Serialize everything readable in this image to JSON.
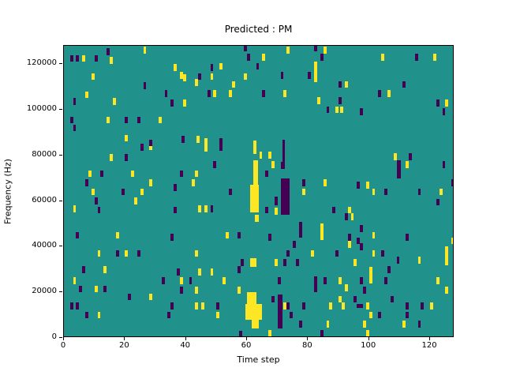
{
  "title": "Predicted : PM",
  "axes": {
    "xlabel": "Time step",
    "ylabel": "Frequency (Hz)",
    "xticks": [
      0,
      20,
      40,
      60,
      80,
      100,
      120
    ],
    "yticks": [
      0,
      20000,
      40000,
      60000,
      80000,
      100000,
      120000
    ]
  },
  "colors": {
    "figure_bg": "#ffffff",
    "mid": "#21918c",
    "high": "#fde725",
    "low": "#440154",
    "axis": "#000000"
  },
  "chart_data": {
    "type": "heatmap",
    "title": "Predicted : PM",
    "xlabel": "Time step",
    "ylabel": "Frequency (Hz)",
    "x_range": [
      0,
      128
    ],
    "y_range_hz": [
      0,
      128000
    ],
    "grid": false,
    "legend": "none",
    "background_value_color": "#21918c",
    "note": "sparse prediction mask: yellow=high class cells, dark=low class cells, units t=time step, f=kHz",
    "single_width_steps": 1,
    "single_height_khz": 3,
    "marks": {
      "yellow_singles": [
        [
          26,
          126
        ],
        [
          6,
          122.5
        ],
        [
          15,
          121.5
        ],
        [
          9,
          114.5
        ],
        [
          7,
          106.5
        ],
        [
          16,
          103.5
        ],
        [
          14,
          95.5
        ],
        [
          31,
          95.5
        ],
        [
          20,
          87.5
        ],
        [
          36,
          118.5
        ],
        [
          51,
          119
        ],
        [
          38,
          115
        ],
        [
          39,
          114
        ],
        [
          43,
          112
        ],
        [
          48,
          114.5
        ],
        [
          59,
          114.5
        ],
        [
          55,
          111
        ],
        [
          49,
          107
        ],
        [
          54,
          107
        ],
        [
          39,
          103
        ],
        [
          43.5,
          87
        ],
        [
          46,
          86
        ],
        [
          62,
          85
        ],
        [
          73,
          126
        ],
        [
          85,
          126
        ],
        [
          65,
          123
        ],
        [
          72,
          107
        ],
        [
          83,
          104
        ],
        [
          89,
          100
        ],
        [
          90.5,
          100
        ],
        [
          92,
          111
        ],
        [
          104,
          123
        ],
        [
          121,
          123
        ],
        [
          106,
          107
        ],
        [
          125,
          103
        ],
        [
          28,
          84
        ],
        [
          15,
          79
        ],
        [
          8,
          72
        ],
        [
          22,
          72
        ],
        [
          28,
          68
        ],
        [
          9,
          64
        ],
        [
          25,
          64
        ],
        [
          23,
          60
        ],
        [
          3,
          56.5
        ],
        [
          17,
          45
        ],
        [
          46,
          83
        ],
        [
          62,
          82
        ],
        [
          43,
          72
        ],
        [
          42,
          68
        ],
        [
          44,
          56.5
        ],
        [
          46,
          56.5
        ],
        [
          53,
          45
        ],
        [
          64,
          80
        ],
        [
          67,
          80
        ],
        [
          68,
          76
        ],
        [
          85,
          68
        ],
        [
          78,
          64
        ],
        [
          69,
          55.5
        ],
        [
          93,
          56
        ],
        [
          94,
          53
        ],
        [
          108,
          79.5
        ],
        [
          112,
          76
        ],
        [
          99,
          67
        ],
        [
          101,
          64
        ],
        [
          123,
          64
        ],
        [
          101,
          45
        ],
        [
          127,
          42.5
        ],
        [
          11,
          37
        ],
        [
          20,
          37
        ],
        [
          13,
          30
        ],
        [
          3,
          25
        ],
        [
          10,
          21.5
        ],
        [
          28,
          18
        ],
        [
          11,
          10
        ],
        [
          43,
          37
        ],
        [
          44,
          29
        ],
        [
          48,
          29
        ],
        [
          38,
          25
        ],
        [
          52,
          25
        ],
        [
          43,
          21
        ],
        [
          57,
          21
        ],
        [
          43,
          14
        ],
        [
          45,
          14
        ],
        [
          50,
          10
        ],
        [
          93,
          41
        ],
        [
          81,
          37
        ],
        [
          69,
          33
        ],
        [
          95,
          33
        ],
        [
          90,
          25
        ],
        [
          92,
          22
        ],
        [
          90,
          17
        ],
        [
          72,
          14
        ],
        [
          87,
          14
        ],
        [
          91,
          14
        ],
        [
          86,
          6
        ],
        [
          67,
          2
        ],
        [
          101,
          37
        ],
        [
          116,
          34
        ],
        [
          122,
          25
        ],
        [
          125,
          21
        ],
        [
          99,
          14
        ],
        [
          120,
          14
        ],
        [
          100,
          10
        ],
        [
          111,
          6
        ],
        [
          98,
          6
        ],
        [
          99,
          2
        ]
      ],
      "dark_singles": [
        [
          14,
          125.5
        ],
        [
          2,
          122.5
        ],
        [
          4,
          122.5
        ],
        [
          10,
          122.5
        ],
        [
          26,
          110.5
        ],
        [
          3,
          103.5
        ],
        [
          2,
          95.5
        ],
        [
          20,
          95.5
        ],
        [
          24,
          95.5
        ],
        [
          3,
          92
        ],
        [
          28,
          85.5
        ],
        [
          59,
          127
        ],
        [
          60,
          123
        ],
        [
          48,
          118.5
        ],
        [
          63,
          119
        ],
        [
          44,
          114.5
        ],
        [
          47,
          107
        ],
        [
          33,
          107
        ],
        [
          35,
          103
        ],
        [
          38.5,
          87
        ],
        [
          51,
          86
        ],
        [
          82,
          127
        ],
        [
          84,
          123
        ],
        [
          80,
          115
        ],
        [
          71,
          115
        ],
        [
          90,
          111
        ],
        [
          65,
          107
        ],
        [
          90,
          104
        ],
        [
          86,
          100
        ],
        [
          115,
          123
        ],
        [
          111,
          111
        ],
        [
          103,
          107
        ],
        [
          122,
          103
        ],
        [
          124,
          99
        ],
        [
          97,
          99
        ],
        [
          25,
          83.5
        ],
        [
          20,
          79
        ],
        [
          12,
          72
        ],
        [
          7,
          68
        ],
        [
          19,
          64
        ],
        [
          10,
          60
        ],
        [
          11,
          56
        ],
        [
          4,
          45
        ],
        [
          51,
          83.5
        ],
        [
          49,
          76
        ],
        [
          38,
          72
        ],
        [
          36,
          66
        ],
        [
          54,
          64
        ],
        [
          48,
          56.5
        ],
        [
          36,
          56
        ],
        [
          57,
          45
        ],
        [
          35,
          44
        ],
        [
          66,
          72
        ],
        [
          78,
          68
        ],
        [
          66,
          56
        ],
        [
          88,
          56
        ],
        [
          92,
          53
        ],
        [
          67,
          44
        ],
        [
          93,
          44
        ],
        [
          113,
          79.5
        ],
        [
          124,
          76
        ],
        [
          96,
          67
        ],
        [
          127,
          68
        ],
        [
          105,
          64
        ],
        [
          116,
          64
        ],
        [
          122,
          59.5
        ],
        [
          97,
          48
        ],
        [
          112,
          44
        ],
        [
          96,
          42.5
        ],
        [
          17,
          37
        ],
        [
          24,
          37
        ],
        [
          6,
          30
        ],
        [
          5,
          21.5
        ],
        [
          13,
          21.5
        ],
        [
          21,
          18
        ],
        [
          2,
          14
        ],
        [
          4,
          14
        ],
        [
          7,
          10
        ],
        [
          58,
          33
        ],
        [
          37,
          29
        ],
        [
          57,
          30
        ],
        [
          32,
          25
        ],
        [
          41,
          25
        ],
        [
          38,
          21
        ],
        [
          35,
          14
        ],
        [
          50,
          14
        ],
        [
          34,
          10
        ],
        [
          57.5,
          1.5
        ],
        [
          75,
          41
        ],
        [
          73,
          37
        ],
        [
          89,
          37
        ],
        [
          72,
          33
        ],
        [
          76,
          33
        ],
        [
          70,
          25
        ],
        [
          85,
          25
        ],
        [
          68,
          17
        ],
        [
          95,
          17
        ],
        [
          78,
          14
        ],
        [
          73,
          14
        ],
        [
          74,
          10
        ],
        [
          77,
          6
        ],
        [
          84,
          2
        ],
        [
          97,
          40
        ],
        [
          104,
          37
        ],
        [
          109,
          34
        ],
        [
          106,
          30
        ],
        [
          97,
          25
        ],
        [
          105,
          25
        ],
        [
          98,
          21
        ],
        [
          107,
          17
        ],
        [
          112,
          14
        ],
        [
          117,
          14
        ],
        [
          103,
          10
        ],
        [
          112,
          10
        ],
        [
          116,
          6
        ]
      ],
      "yellow_rects": [
        [
          82,
          83,
          112,
          121
        ],
        [
          62,
          63.5,
          67,
          78
        ],
        [
          61,
          64,
          55,
          67
        ],
        [
          62.5,
          64,
          51,
          54
        ],
        [
          84,
          85,
          43,
          50
        ],
        [
          61,
          63,
          31,
          35
        ],
        [
          60,
          63,
          15,
          20
        ],
        [
          59.5,
          65,
          8,
          15
        ],
        [
          61.5,
          64,
          4,
          8
        ],
        [
          100,
          101,
          24,
          31
        ],
        [
          125,
          126,
          32,
          40
        ]
      ],
      "dark_rects": [
        [
          71.5,
          72.5,
          77,
          87
        ],
        [
          71,
          72.5,
          74,
          77
        ],
        [
          71,
          74,
          54,
          70
        ],
        [
          69,
          70,
          58,
          62
        ],
        [
          77,
          78,
          44,
          51
        ],
        [
          109,
          110.5,
          70,
          78
        ],
        [
          82,
          83,
          20,
          27
        ],
        [
          70,
          71.5,
          4,
          19
        ],
        [
          73,
          74,
          13,
          15
        ],
        [
          96,
          98,
          13,
          15
        ]
      ]
    }
  }
}
